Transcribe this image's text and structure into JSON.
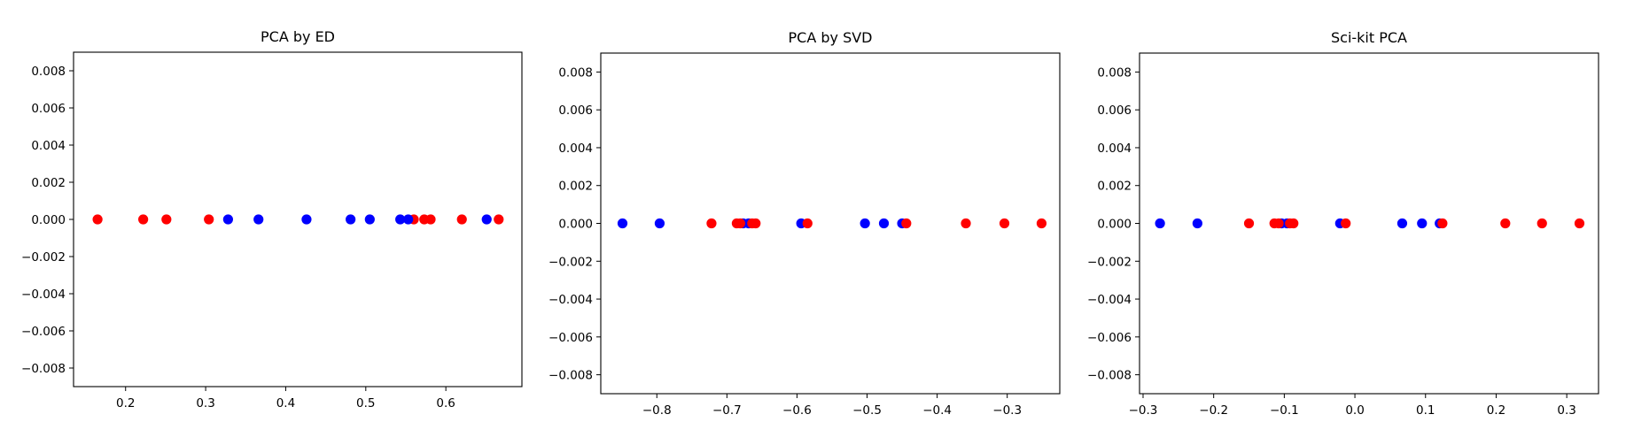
{
  "chart_data": [
    {
      "type": "scatter",
      "title": "PCA by ED",
      "xlabel": "",
      "ylabel": "",
      "xlim": [
        0.135,
        0.695
      ],
      "ylim": [
        -0.009,
        0.009
      ],
      "xticks": [
        0.2,
        0.3,
        0.4,
        0.5,
        0.6
      ],
      "xtick_labels": [
        "0.2",
        "0.3",
        "0.4",
        "0.5",
        "0.6"
      ],
      "yticks": [
        0.008,
        0.006,
        0.004,
        0.002,
        0.0,
        -0.002,
        -0.004,
        -0.006,
        -0.008
      ],
      "ytick_labels": [
        "0.008",
        "0.006",
        "0.004",
        "0.002",
        "0.000",
        "−0.002",
        "−0.004",
        "−0.006",
        "−0.008"
      ],
      "grid": false,
      "series": [
        {
          "color": "#ff0000",
          "x": [
            0.165,
            0.222,
            0.251,
            0.304,
            0.56,
            0.573,
            0.581,
            0.62,
            0.666
          ],
          "y": [
            0,
            0,
            0,
            0,
            0,
            0,
            0,
            0,
            0
          ]
        },
        {
          "color": "#0000ff",
          "x": [
            0.328,
            0.366,
            0.426,
            0.481,
            0.505,
            0.543,
            0.553,
            0.651
          ],
          "y": [
            0,
            0,
            0,
            0,
            0,
            0,
            0,
            0
          ]
        }
      ]
    },
    {
      "type": "scatter",
      "title": "PCA by SVD",
      "xlabel": "",
      "ylabel": "",
      "xlim": [
        -0.88,
        -0.225
      ],
      "ylim": [
        -0.009,
        0.009
      ],
      "xticks": [
        -0.8,
        -0.7,
        -0.6,
        -0.5,
        -0.4,
        -0.3
      ],
      "xtick_labels": [
        "−0.8",
        "−0.7",
        "−0.6",
        "−0.5",
        "−0.4",
        "−0.3"
      ],
      "yticks": [
        0.008,
        0.006,
        0.004,
        0.002,
        0.0,
        -0.002,
        -0.004,
        -0.006,
        -0.008
      ],
      "ytick_labels": [
        "0.008",
        "0.006",
        "0.004",
        "0.002",
        "0.000",
        "−0.002",
        "−0.004",
        "−0.006",
        "−0.008"
      ],
      "grid": false,
      "series": [
        {
          "color": "#0000ff",
          "x": [
            -0.849,
            -0.796,
            -0.677,
            -0.669,
            -0.594,
            -0.503,
            -0.476,
            -0.45
          ],
          "y": [
            0,
            0,
            0,
            0,
            0,
            0,
            0,
            0
          ]
        },
        {
          "color": "#ff0000",
          "x": [
            -0.722,
            -0.686,
            -0.681,
            -0.664,
            -0.659,
            -0.585,
            -0.444,
            -0.359,
            -0.304,
            -0.251
          ],
          "y": [
            0,
            0,
            0,
            0,
            0,
            0,
            0,
            0,
            0,
            0
          ]
        }
      ]
    },
    {
      "type": "scatter",
      "title": "Sci-kit PCA",
      "xlabel": "",
      "ylabel": "",
      "xlim": [
        -0.305,
        0.345
      ],
      "ylim": [
        -0.009,
        0.009
      ],
      "xticks": [
        -0.3,
        -0.2,
        -0.1,
        0.0,
        0.1,
        0.2,
        0.3
      ],
      "xtick_labels": [
        "−0.3",
        "−0.2",
        "−0.1",
        "0.0",
        "0.1",
        "0.2",
        "0.3"
      ],
      "yticks": [
        0.008,
        0.006,
        0.004,
        0.002,
        0.0,
        -0.002,
        -0.004,
        -0.006,
        -0.008
      ],
      "ytick_labels": [
        "0.008",
        "0.006",
        "0.004",
        "0.002",
        "0.000",
        "−0.002",
        "−0.004",
        "−0.006",
        "−0.008"
      ],
      "grid": false,
      "series": [
        {
          "color": "#0000ff",
          "x": [
            -0.276,
            -0.223,
            -0.104,
            -0.096,
            -0.021,
            0.067,
            0.095,
            0.12
          ],
          "y": [
            0,
            0,
            0,
            0,
            0,
            0,
            0,
            0
          ]
        },
        {
          "color": "#ff0000",
          "x": [
            -0.15,
            -0.114,
            -0.108,
            -0.092,
            -0.087,
            -0.013,
            0.124,
            0.213,
            0.265,
            0.318
          ],
          "y": [
            0,
            0,
            0,
            0,
            0,
            0,
            0,
            0,
            0,
            0
          ]
        }
      ]
    }
  ]
}
